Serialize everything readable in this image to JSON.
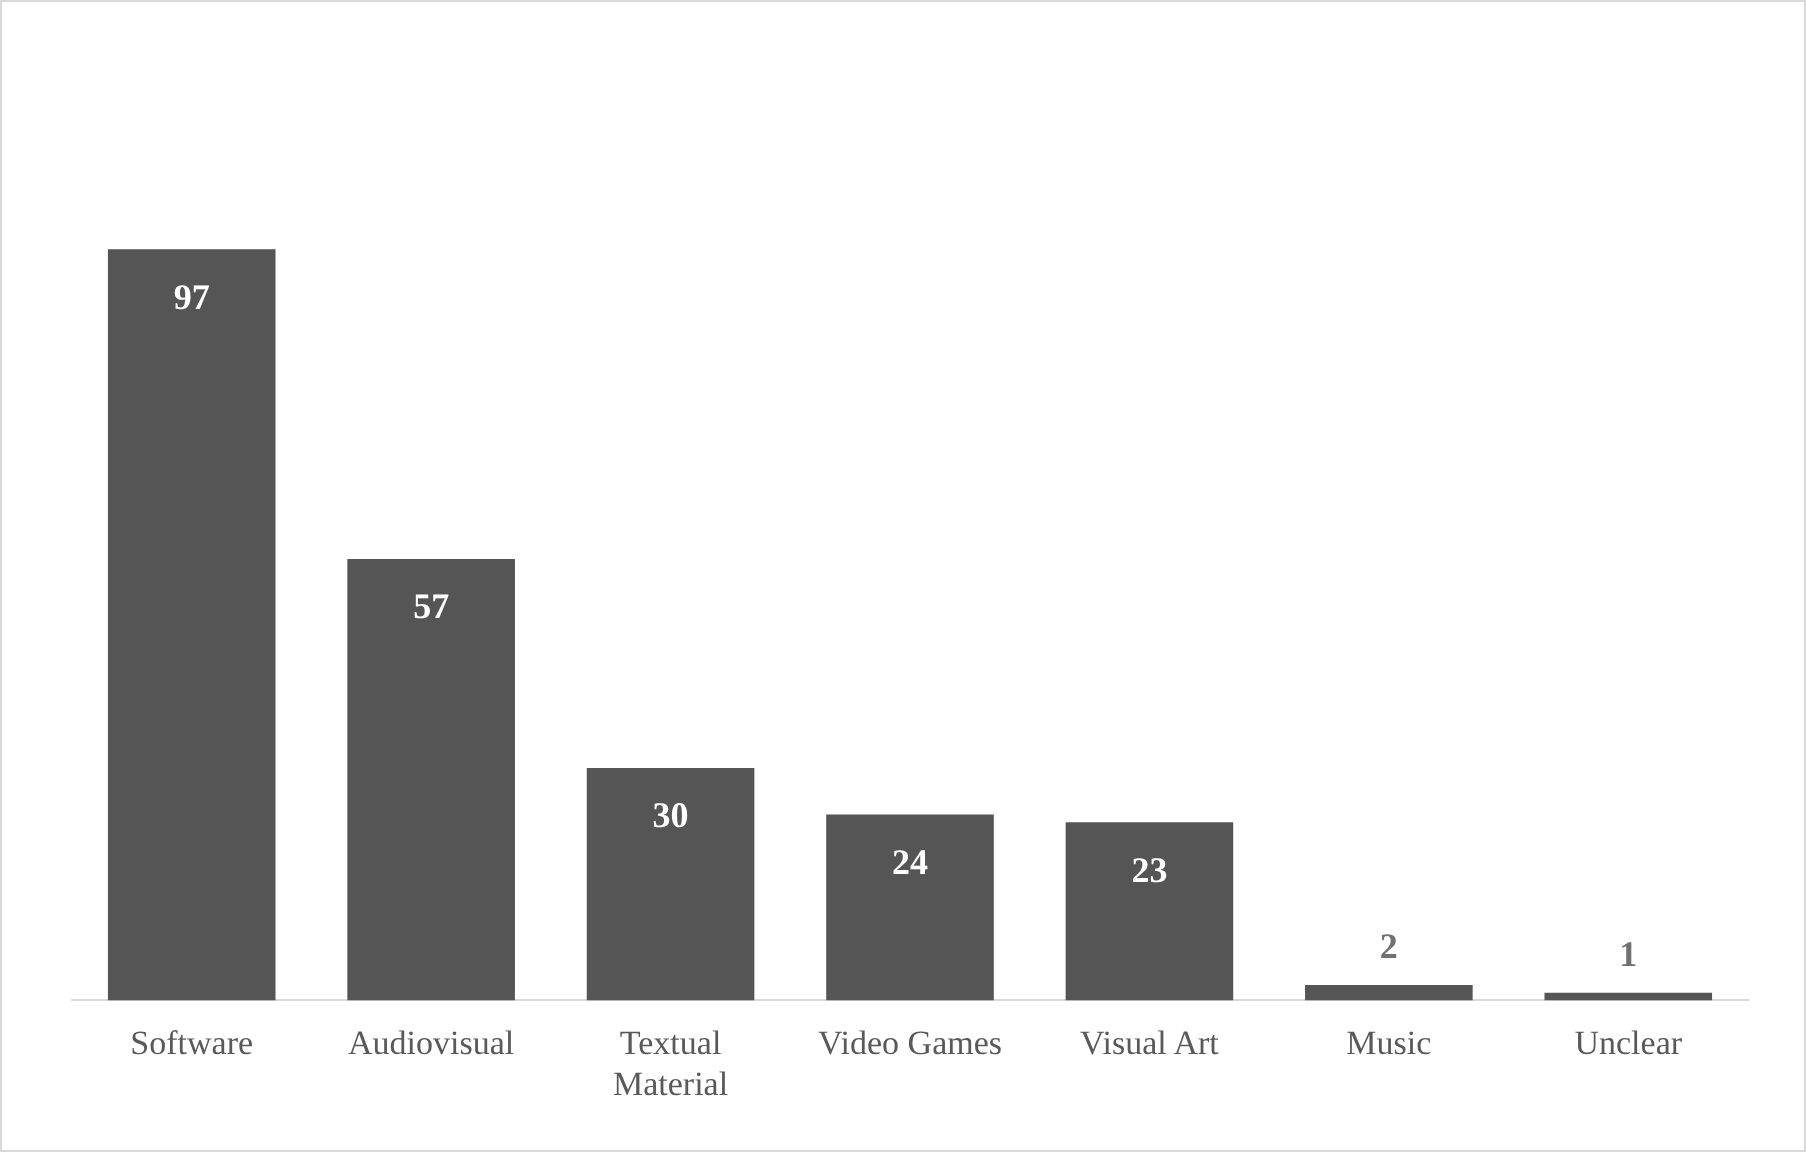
{
  "chart_data": {
    "type": "bar",
    "categories": [
      "Software",
      "Audiovisual",
      "Textual Material",
      "Video Games",
      "Visual Art",
      "Music",
      "Unclear"
    ],
    "values": [
      97,
      57,
      30,
      24,
      23,
      2,
      1
    ],
    "color": "#555555",
    "data_labels": true,
    "grid": false,
    "legend": false
  }
}
